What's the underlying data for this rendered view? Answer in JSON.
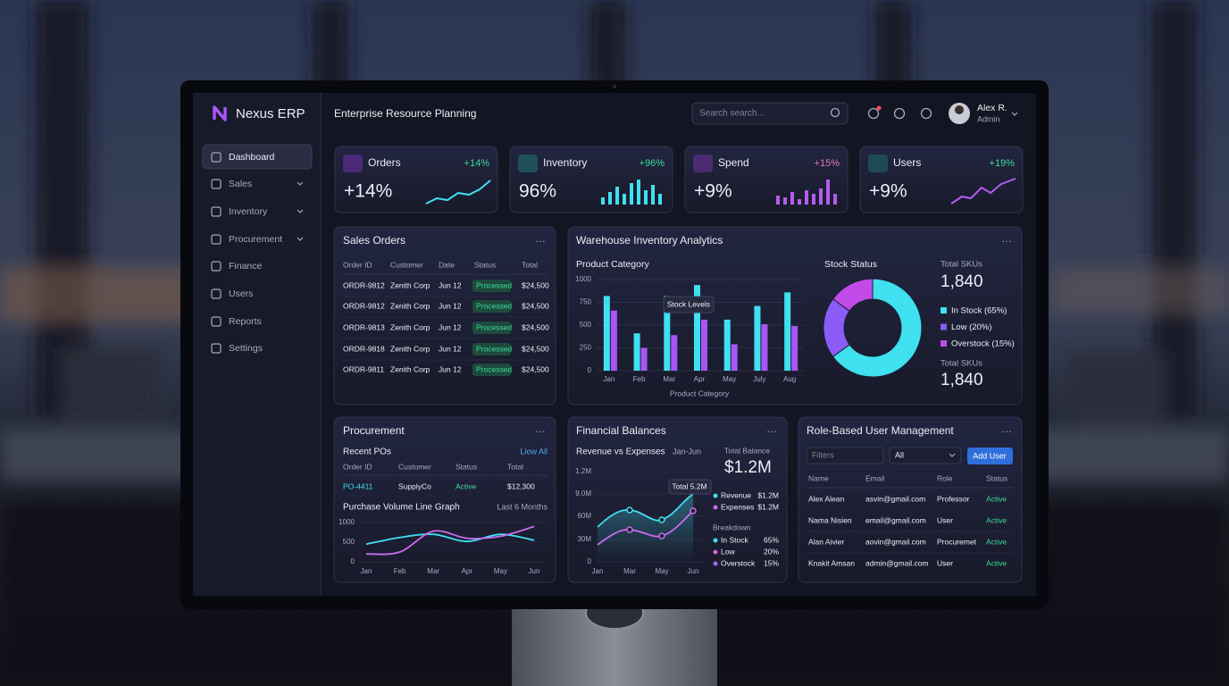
{
  "brand": "Nexus ERP",
  "header": {
    "title": "Enterprise Resource Planning",
    "search_placeholder": "Search search...",
    "user_name": "Alex R.",
    "user_role": "Admin"
  },
  "nav": [
    "Dashboard",
    "Sales",
    "Inventory",
    "Procurement",
    "Finance",
    "Users",
    "Reports",
    "Settings"
  ],
  "kpis": [
    {
      "title": "Orders",
      "change": "+14%",
      "value": "+14%"
    },
    {
      "title": "Inventory",
      "change": "+96%",
      "value": "96%"
    },
    {
      "title": "Spend",
      "change": "+15%",
      "value": "+9%"
    },
    {
      "title": "Users",
      "change": "+19%",
      "value": "+9%"
    }
  ],
  "sales_orders": {
    "title": "Sales Orders",
    "columns": [
      "Order ID",
      "Customer",
      "Date",
      "Status",
      "Total"
    ],
    "rows": [
      [
        "ORDR-9812",
        "Zenith Corp",
        "Jun 12",
        "Processed",
        "$24,500"
      ],
      [
        "ORDR-9812",
        "Zenith Corp",
        "Jun 12",
        "Processed",
        "$24,500"
      ],
      [
        "ORDR-9813",
        "Zenith Corp",
        "Jun 12",
        "Processed",
        "$24,500"
      ],
      [
        "ORDR-9818",
        "Zenith Corp",
        "Jun 12",
        "Processed",
        "$24,500"
      ],
      [
        "ORDR-9811",
        "Zenith Corp",
        "Jun 12",
        "Processed",
        "$24,500"
      ]
    ]
  },
  "warehouse": {
    "title": "Warehouse Inventory Analytics"
  },
  "procurement": {
    "title": "Procurement",
    "recent_title": "Recent POs",
    "link": "Liow All",
    "columns": [
      "Order ID",
      "Customer",
      "Status",
      "Total"
    ],
    "rows": [
      [
        "PO-4411",
        "SupplyCo",
        "Active",
        "$12,300"
      ]
    ]
  },
  "financial": {
    "title": "Financial Balances",
    "chart_title": "Revenue vs Expenses",
    "period": "Jan-Jun",
    "y_labels": [
      "1.2M",
      "9.0M",
      "60M",
      "30M",
      "0"
    ],
    "x_labels": [
      "Jan",
      "Mar",
      "May",
      "Jun"
    ],
    "tooltip": "Total 5.2M",
    "total_label": "Total Balance",
    "total": "$1.2M",
    "legend": [
      {
        "name": "Revenue",
        "value": "$1.2M"
      },
      {
        "name": "Expenses",
        "value": "$1.2M"
      }
    ],
    "breakdown_title": "Breakdown",
    "breakdown": [
      {
        "name": "In Stock",
        "value": "65%"
      },
      {
        "name": "Low",
        "value": "20%"
      },
      {
        "name": "Overstock",
        "value": "15%"
      }
    ]
  },
  "users": {
    "title": "Role-Based User Management",
    "filter_placeholder": "Filters",
    "select": "All",
    "button": "Add User",
    "columns": [
      "Name",
      "Email",
      "Role",
      "Status"
    ],
    "rows": [
      [
        "Alex Alean",
        "asvin@gmail.com",
        "Professor",
        "Active"
      ],
      [
        "Nama Nisien",
        "email@gmail.com",
        "User",
        "Active"
      ],
      [
        "Alan Aivier",
        "aovin@gmail.com",
        "Procuremet",
        "Active"
      ],
      [
        "Knakit Amsan",
        "admin@gmail.com",
        "User",
        "Active"
      ]
    ]
  },
  "chart_data": [
    {
      "type": "bar",
      "title": "Product Category",
      "x_label": "Product Category",
      "annotation": "Stock Levels",
      "categories": [
        "Jan",
        "Feb",
        "Mar",
        "Apr",
        "May",
        "July",
        "Aug"
      ],
      "series": [
        {
          "color": "#3fe0f0",
          "values": [
            820,
            410,
            820,
            940,
            560,
            710,
            860
          ]
        },
        {
          "color": "#a855f7",
          "values": [
            660,
            250,
            390,
            560,
            290,
            510,
            490
          ]
        }
      ],
      "ylim": [
        0,
        1000
      ],
      "yticks": [
        0,
        250,
        500,
        750,
        1000
      ],
      "grid": true
    },
    {
      "type": "donut",
      "title": "Stock Status",
      "categories": [
        "In Stock",
        "Low",
        "Overstock"
      ],
      "labels": [
        "In Stock (65%)",
        "Low (20%)",
        "Overstock (15%)"
      ],
      "values": [
        65,
        20,
        15
      ],
      "colors": [
        "#3fe0f0",
        "#8b5cf6",
        "#c04be8"
      ],
      "summary": [
        {
          "label": "Total SKUs",
          "value": "1,840"
        },
        {
          "label": "Total SKUs",
          "value": "1,840"
        }
      ]
    },
    {
      "type": "line",
      "title": "Purchase Volume Line Graph",
      "subtitle": "Last 6 Months",
      "categories": [
        "Jan",
        "Feb",
        "Mar",
        "Apr",
        "May",
        "Jun"
      ],
      "series": [
        {
          "color": "#3fe0f0",
          "values": [
            450,
            620,
            700,
            520,
            700,
            550
          ]
        },
        {
          "color": "#c96cf0",
          "values": [
            200,
            250,
            780,
            600,
            650,
            900
          ]
        }
      ],
      "ylim": [
        0,
        1000
      ],
      "yticks": [
        0,
        500,
        1000
      ]
    }
  ]
}
